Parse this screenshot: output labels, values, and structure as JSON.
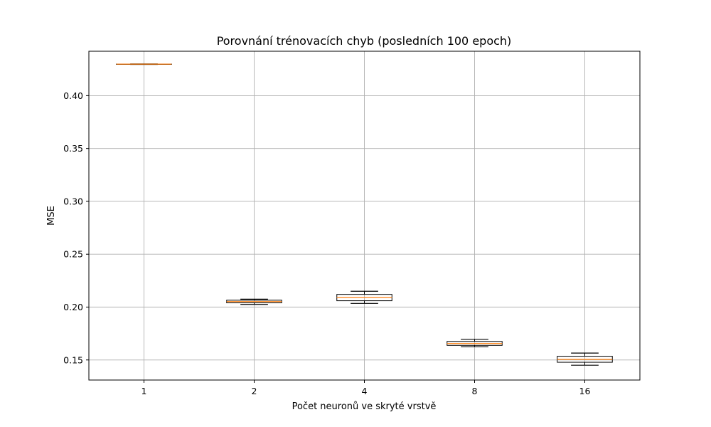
{
  "chart_data": {
    "type": "box",
    "title": "Porovnání trénovacích chyb (posledních 100 epoch)",
    "xlabel": "Počet neuronů ve skryté vrstvě",
    "ylabel": "MSE",
    "categories": [
      "1",
      "2",
      "4",
      "8",
      "16"
    ],
    "ylim": [
      0.131,
      0.442
    ],
    "yticks": [
      0.15,
      0.2,
      0.25,
      0.3,
      0.35,
      0.4
    ],
    "ytick_labels": [
      "0.15",
      "0.20",
      "0.25",
      "0.30",
      "0.35",
      "0.40"
    ],
    "grid": true,
    "boxes": [
      {
        "category": "1",
        "whisker_low": 0.4295,
        "q1": 0.4297,
        "median": 0.4298,
        "q3": 0.4299,
        "whisker_high": 0.43
      },
      {
        "category": "2",
        "whisker_low": 0.2025,
        "q1": 0.204,
        "median": 0.2052,
        "q3": 0.2065,
        "whisker_high": 0.2075
      },
      {
        "category": "4",
        "whisker_low": 0.2035,
        "q1": 0.206,
        "median": 0.209,
        "q3": 0.212,
        "whisker_high": 0.215
      },
      {
        "category": "8",
        "whisker_low": 0.1625,
        "q1": 0.1638,
        "median": 0.1655,
        "q3": 0.1675,
        "whisker_high": 0.1695
      },
      {
        "category": "16",
        "whisker_low": 0.145,
        "q1": 0.1478,
        "median": 0.1505,
        "q3": 0.1535,
        "whisker_high": 0.1565
      }
    ],
    "colors": {
      "box": "#000000",
      "median": "#ff7f0e",
      "grid": "#b0b0b0"
    }
  }
}
